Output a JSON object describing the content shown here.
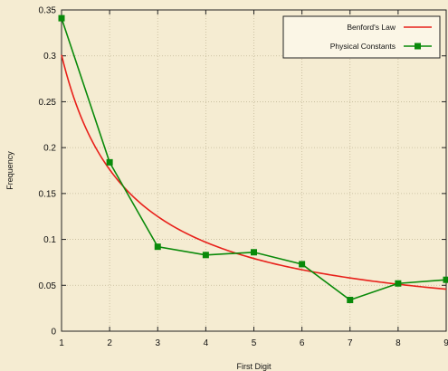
{
  "chart_data": {
    "type": "line",
    "xlabel": "First Digit",
    "ylabel": "Frequency",
    "xlim": [
      1,
      9
    ],
    "ylim": [
      0,
      0.35
    ],
    "x_ticks": [
      1,
      2,
      3,
      4,
      5,
      6,
      7,
      8,
      9
    ],
    "y_ticks": [
      "0",
      "0.05",
      "0.1",
      "0.15",
      "0.2",
      "0.25",
      "0.3",
      "0.35"
    ],
    "grid": true,
    "legend_position": "top-right",
    "series": [
      {
        "name": "Benford's Law",
        "style": "curve",
        "color": "#e8201a",
        "x": [
          1,
          2,
          3,
          4,
          5,
          6,
          7,
          8,
          9
        ],
        "values": [
          0.301,
          0.176,
          0.125,
          0.097,
          0.079,
          0.067,
          0.058,
          0.051,
          0.046
        ]
      },
      {
        "name": "Physical Constants",
        "style": "line-markers",
        "color": "#0a8a0a",
        "x": [
          1,
          2,
          3,
          4,
          5,
          6,
          7,
          8,
          9
        ],
        "values": [
          0.341,
          0.184,
          0.092,
          0.083,
          0.086,
          0.073,
          0.034,
          0.052,
          0.056
        ]
      }
    ]
  }
}
